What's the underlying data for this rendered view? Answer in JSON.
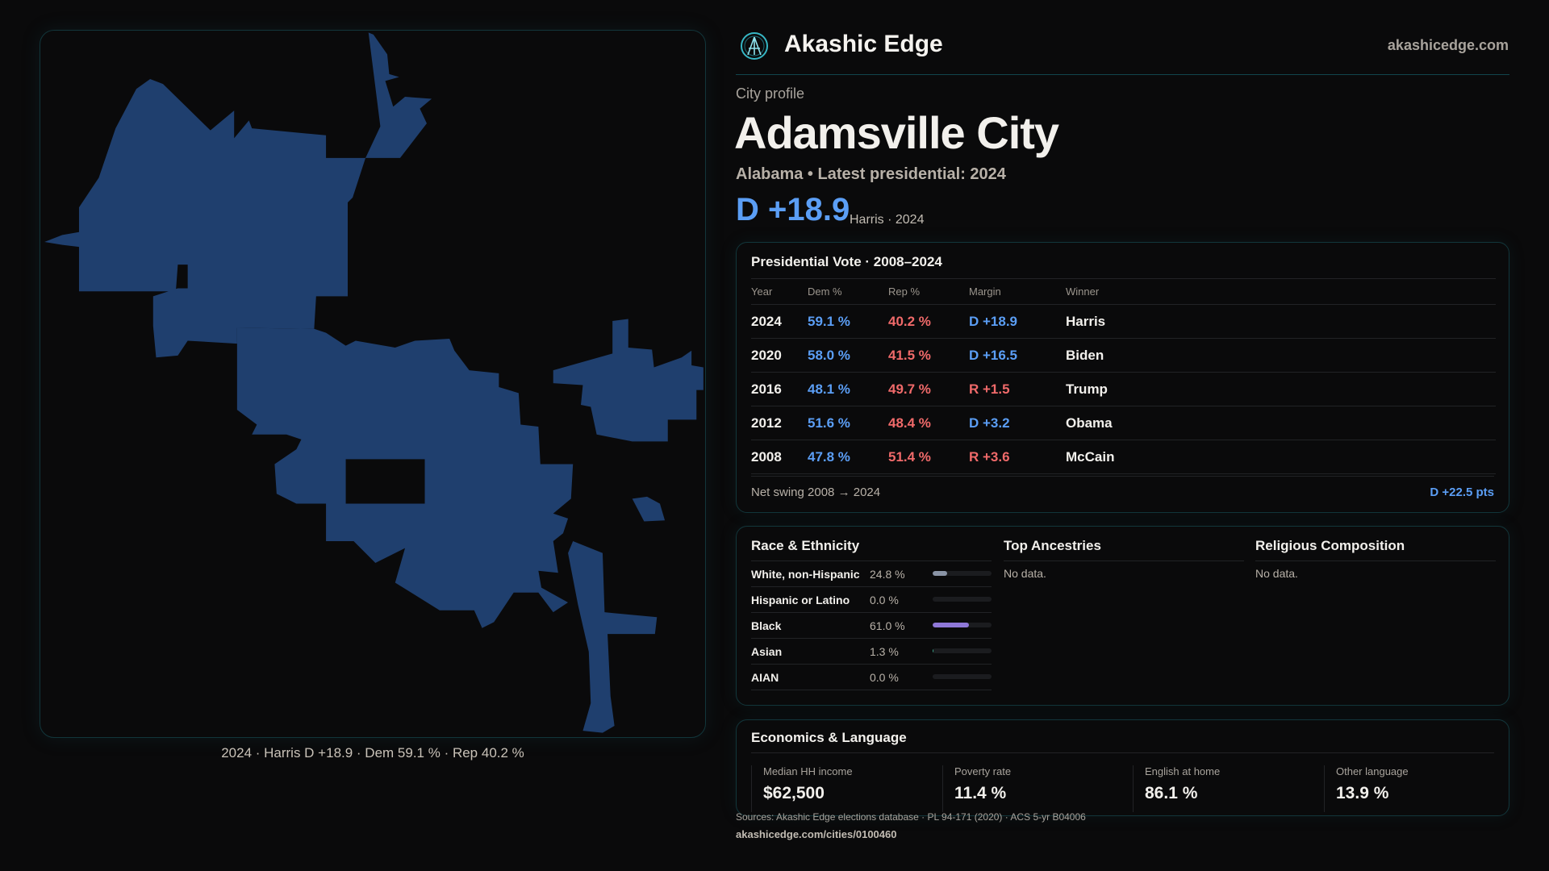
{
  "brand": {
    "name": "Akashic Edge",
    "site": "akashicedge.com",
    "logo_icon": "akashic-edge-logo"
  },
  "profile": {
    "kicker": "City profile",
    "title": "Adamsville City",
    "subtitle": "Alabama • Latest presidential: 2024",
    "margin": "D +18.9",
    "margin_sub": "Harris · 2024"
  },
  "map": {
    "caption": "2024 · Harris D +18.9 · Dem 59.1 % · Rep 40.2 %",
    "fill_color": "#1f3f6e"
  },
  "vote": {
    "title": "Presidential Vote · 2008–2024",
    "columns": [
      "Year",
      "Dem %",
      "Rep %",
      "Margin",
      "Winner"
    ],
    "rows": [
      {
        "year": "2024",
        "dem": "59.1 %",
        "rep": "40.2 %",
        "margin": "D +18.9",
        "party": "D",
        "winner": "Harris"
      },
      {
        "year": "2020",
        "dem": "58.0 %",
        "rep": "41.5 %",
        "margin": "D +16.5",
        "party": "D",
        "winner": "Biden"
      },
      {
        "year": "2016",
        "dem": "48.1 %",
        "rep": "49.7 %",
        "margin": "R +1.5",
        "party": "R",
        "winner": "Trump"
      },
      {
        "year": "2012",
        "dem": "51.6 %",
        "rep": "48.4 %",
        "margin": "D +3.2",
        "party": "D",
        "winner": "Obama"
      },
      {
        "year": "2008",
        "dem": "47.8 %",
        "rep": "51.4 %",
        "margin": "R +3.6",
        "party": "R",
        "winner": "McCain"
      }
    ],
    "swing_label": "Net swing 2008 → 2024",
    "swing_value": "D +22.5 pts"
  },
  "race": {
    "title": "Race & Ethnicity",
    "rows": [
      {
        "label": "White, non-Hispanic",
        "pct": "24.8 %",
        "value": 24.8,
        "color": "#8a94a6"
      },
      {
        "label": "Hispanic or Latino",
        "pct": "0.0 %",
        "value": 0,
        "color": "#d08a4a"
      },
      {
        "label": "Black",
        "pct": "61.0 %",
        "value": 61.0,
        "color": "#8f78d8"
      },
      {
        "label": "Asian",
        "pct": "1.3 %",
        "value": 1.3,
        "color": "#3aa58a"
      },
      {
        "label": "AIAN",
        "pct": "0.0 %",
        "value": 0,
        "color": "#c07070"
      }
    ]
  },
  "ancestries": {
    "title": "Top Ancestries",
    "empty": "No data."
  },
  "religion": {
    "title": "Religious Composition",
    "empty": "No data."
  },
  "econ": {
    "title": "Economics & Language",
    "stats": [
      {
        "label": "Median HH income",
        "value": "$62,500"
      },
      {
        "label": "Poverty rate",
        "value": "11.4 %"
      },
      {
        "label": "English at home",
        "value": "86.1 %"
      },
      {
        "label": "Other language",
        "value": "13.9 %"
      }
    ]
  },
  "footer": {
    "sources": "Sources: Akashic Edge elections database · PL 94-171 (2020) · ACS 5-yr B04006",
    "url": "akashicedge.com/cities/0100460"
  },
  "colors": {
    "dem": "#5b9ef5",
    "rep": "#f06a6a",
    "accent": "#12454c",
    "background": "#0a0a0b"
  }
}
